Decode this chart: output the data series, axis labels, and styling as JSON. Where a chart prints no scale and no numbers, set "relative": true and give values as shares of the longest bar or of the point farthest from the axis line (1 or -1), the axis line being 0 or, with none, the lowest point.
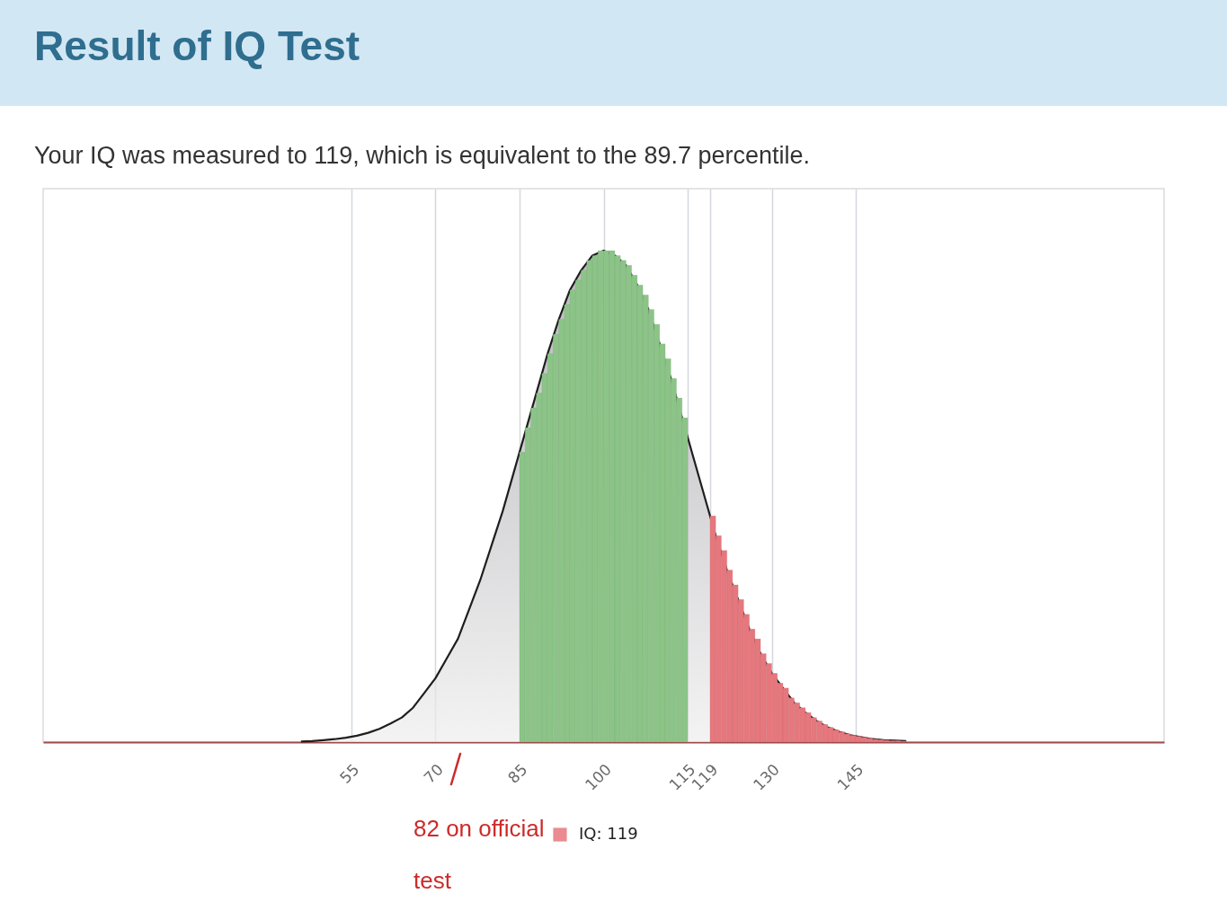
{
  "chart_data": {
    "type": "area",
    "title": "Result of IQ Test",
    "subtitle": "Your IQ was measured to 119, which is equivalent to the 89.7 percentile.",
    "annotations": [
      "82 on official test"
    ],
    "relative": true,
    "xlim": [
      0,
      200
    ],
    "xticks": [
      55,
      70,
      85,
      100,
      115,
      119,
      130,
      145
    ],
    "grid": "x",
    "legend": "bottom",
    "series": [
      {
        "color": "#c5c6ca",
        "x": [
          46,
          48,
          50,
          52,
          54,
          56,
          58,
          60,
          62,
          64,
          66,
          68,
          70,
          72,
          74,
          76,
          78,
          80,
          82,
          84,
          86,
          88,
          90,
          92,
          94,
          96,
          98,
          100,
          102,
          104,
          106,
          108,
          110,
          112,
          114,
          116,
          118,
          120,
          122,
          124,
          126,
          128,
          130,
          132,
          134,
          136,
          138,
          140,
          142,
          144,
          146,
          148,
          150,
          152,
          154
        ],
        "values": [
          0.001,
          0.002,
          0.004,
          0.006,
          0.009,
          0.013,
          0.019,
          0.027,
          0.038,
          0.05,
          0.07,
          0.1,
          0.13,
          0.17,
          0.21,
          0.27,
          0.33,
          0.4,
          0.47,
          0.55,
          0.63,
          0.71,
          0.79,
          0.86,
          0.92,
          0.96,
          0.99,
          1.0,
          0.99,
          0.97,
          0.93,
          0.88,
          0.81,
          0.74,
          0.66,
          0.58,
          0.5,
          0.42,
          0.35,
          0.29,
          0.23,
          0.18,
          0.14,
          0.11,
          0.08,
          0.06,
          0.043,
          0.03,
          0.021,
          0.014,
          0.01,
          0.006,
          0.004,
          0.003,
          0.002
        ]
      },
      {
        "type": "bar",
        "color": "#8cc488",
        "x": [
          85.5,
          86.5,
          87.5,
          88.5,
          89.5,
          90.5,
          91.5,
          92.5,
          93.5,
          94.5,
          95.5,
          96.5,
          97.5,
          98.5,
          99.5,
          100.5,
          101.5,
          102.5,
          103.5,
          104.5,
          105.5,
          106.5,
          107.5,
          108.5,
          109.5,
          110.5,
          111.5,
          112.5,
          113.5,
          114.5
        ],
        "values": [
          0.59,
          0.64,
          0.68,
          0.71,
          0.75,
          0.79,
          0.83,
          0.86,
          0.89,
          0.92,
          0.94,
          0.96,
          0.98,
          0.99,
          1.0,
          1.0,
          1.0,
          0.99,
          0.98,
          0.97,
          0.95,
          0.93,
          0.91,
          0.88,
          0.85,
          0.81,
          0.78,
          0.74,
          0.7,
          0.66
        ]
      },
      {
        "type": "bar",
        "name": "IQ: 119",
        "color": "#e5777d",
        "x": [
          119.5,
          120.5,
          121.5,
          122.5,
          123.5,
          124.5,
          125.5,
          126.5,
          127.5,
          128.5,
          129.5,
          130.5,
          131.5,
          132.5,
          133.5,
          134.5,
          135.5,
          136.5,
          137.5,
          138.5,
          139.5,
          140.5,
          141.5,
          142.5,
          143.5,
          144.5,
          145.5,
          146.5,
          147.5,
          148.5,
          149.5,
          150.5,
          151.5,
          152.5,
          153.5
        ],
        "values": [
          0.46,
          0.42,
          0.39,
          0.35,
          0.32,
          0.29,
          0.26,
          0.23,
          0.21,
          0.18,
          0.16,
          0.14,
          0.12,
          0.11,
          0.09,
          0.08,
          0.07,
          0.06,
          0.05,
          0.043,
          0.036,
          0.03,
          0.025,
          0.021,
          0.017,
          0.014,
          0.012,
          0.01,
          0.008,
          0.006,
          0.005,
          0.004,
          0.003,
          0.003,
          0.002
        ]
      }
    ]
  }
}
